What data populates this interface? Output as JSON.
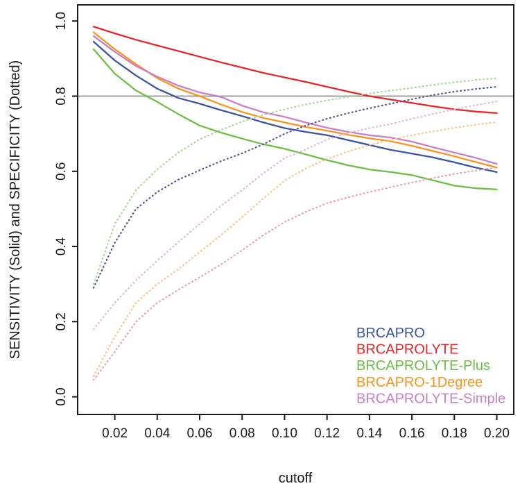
{
  "chart_data": {
    "type": "line",
    "title": "",
    "xlabel": "cutoff",
    "ylabel": "SENSITIVITY (Solid) and SPECIFICITY (Dotted)",
    "xlim": [
      0.0025,
      0.208
    ],
    "ylim": [
      -0.047,
      1.043
    ],
    "x_ticks": [
      0.02,
      0.04,
      0.06,
      0.08,
      0.1,
      0.12,
      0.14,
      0.16,
      0.18,
      0.2
    ],
    "x_tick_labels": [
      "0.02",
      "0.04",
      "0.06",
      "0.08",
      "0.10",
      "0.12",
      "0.14",
      "0.16",
      "0.18",
      "0.20"
    ],
    "y_ticks": [
      0.0,
      0.2,
      0.4,
      0.6,
      0.8,
      1.0
    ],
    "y_tick_labels": [
      "0.0",
      "0.2",
      "0.4",
      "0.6",
      "0.8",
      "1.0"
    ],
    "grid": false,
    "reference_line": {
      "y": 0.8,
      "color": "#b0b0b0"
    },
    "x": [
      0.01,
      0.02,
      0.03,
      0.04,
      0.05,
      0.06,
      0.07,
      0.08,
      0.09,
      0.1,
      0.11,
      0.12,
      0.13,
      0.14,
      0.15,
      0.16,
      0.17,
      0.18,
      0.19,
      0.2
    ],
    "series": [
      {
        "name": "BRCAPRO sensitivity",
        "model": "BRCAPRO",
        "style": "solid",
        "color": "#3a53a4",
        "values": [
          0.945,
          0.895,
          0.855,
          0.82,
          0.795,
          0.78,
          0.763,
          0.747,
          0.73,
          0.715,
          0.705,
          0.696,
          0.683,
          0.67,
          0.657,
          0.647,
          0.637,
          0.624,
          0.61,
          0.598
        ]
      },
      {
        "name": "BRCAPROLYTE sensitivity",
        "model": "BRCAPROLYTE",
        "style": "solid",
        "color": "#e8242b",
        "values": [
          0.985,
          0.967,
          0.95,
          0.935,
          0.92,
          0.905,
          0.89,
          0.876,
          0.862,
          0.85,
          0.838,
          0.825,
          0.812,
          0.8,
          0.791,
          0.782,
          0.773,
          0.765,
          0.759,
          0.755
        ]
      },
      {
        "name": "BRCAPROLYTE-Plus sensitivity",
        "model": "BRCAPROLYTE-Plus",
        "style": "solid",
        "color": "#6cbe45",
        "values": [
          0.925,
          0.86,
          0.815,
          0.785,
          0.752,
          0.722,
          0.703,
          0.687,
          0.672,
          0.66,
          0.645,
          0.63,
          0.616,
          0.605,
          0.598,
          0.59,
          0.576,
          0.562,
          0.555,
          0.552
        ]
      },
      {
        "name": "BRCAPRO-1Degree sensitivity",
        "model": "BRCAPRO-1Degree",
        "style": "solid",
        "color": "#f7941e",
        "values": [
          0.97,
          0.925,
          0.885,
          0.848,
          0.82,
          0.8,
          0.778,
          0.758,
          0.742,
          0.73,
          0.718,
          0.708,
          0.697,
          0.688,
          0.68,
          0.668,
          0.654,
          0.64,
          0.625,
          0.61
        ]
      },
      {
        "name": "BRCAPROLYTE-Simple sensitivity",
        "model": "BRCAPROLYTE-Simple",
        "style": "solid",
        "color": "#c87fc3",
        "values": [
          0.96,
          0.918,
          0.88,
          0.852,
          0.828,
          0.81,
          0.798,
          0.775,
          0.757,
          0.745,
          0.73,
          0.716,
          0.705,
          0.696,
          0.69,
          0.679,
          0.664,
          0.65,
          0.636,
          0.62
        ]
      },
      {
        "name": "BRCAPRO specificity",
        "model": "BRCAPRO",
        "style": "dotted",
        "color": "#4d568a",
        "values": [
          0.29,
          0.41,
          0.5,
          0.545,
          0.578,
          0.603,
          0.627,
          0.648,
          0.672,
          0.7,
          0.722,
          0.74,
          0.755,
          0.768,
          0.78,
          0.792,
          0.803,
          0.812,
          0.819,
          0.825
        ]
      },
      {
        "name": "BRCAPROLYTE specificity",
        "model": "BRCAPROLYTE",
        "style": "dotted",
        "color": "#f09ca4",
        "values": [
          0.045,
          0.12,
          0.2,
          0.25,
          0.285,
          0.318,
          0.352,
          0.39,
          0.43,
          0.465,
          0.492,
          0.515,
          0.531,
          0.545,
          0.558,
          0.57,
          0.582,
          0.593,
          0.602,
          0.61
        ]
      },
      {
        "name": "BRCAPROLYTE-Plus specificity",
        "model": "BRCAPROLYTE-Plus",
        "style": "dotted",
        "color": "#a6d795",
        "values": [
          0.3,
          0.46,
          0.55,
          0.605,
          0.65,
          0.685,
          0.71,
          0.732,
          0.75,
          0.765,
          0.778,
          0.789,
          0.798,
          0.807,
          0.815,
          0.822,
          0.83,
          0.837,
          0.843,
          0.848
        ]
      },
      {
        "name": "BRCAPRO-1Degree specificity",
        "model": "BRCAPRO-1Degree",
        "style": "dotted",
        "color": "#f9c489",
        "values": [
          0.055,
          0.16,
          0.25,
          0.3,
          0.34,
          0.385,
          0.43,
          0.478,
          0.528,
          0.575,
          0.608,
          0.633,
          0.653,
          0.67,
          0.684,
          0.696,
          0.706,
          0.716,
          0.724,
          0.731
        ]
      },
      {
        "name": "BRCAPROLYTE-Simple specificity",
        "model": "BRCAPROLYTE-Simple",
        "style": "dotted",
        "color": "#e0b7dc",
        "values": [
          0.18,
          0.25,
          0.31,
          0.362,
          0.412,
          0.46,
          0.508,
          0.55,
          0.595,
          0.635,
          0.658,
          0.685,
          0.702,
          0.715,
          0.726,
          0.74,
          0.753,
          0.765,
          0.776,
          0.786
        ]
      }
    ],
    "legend": {
      "position": "bottom-right",
      "entries": [
        {
          "label": "BRCAPRO",
          "color": "#3a53a4"
        },
        {
          "label": "BRCAPROLYTE",
          "color": "#e8242b"
        },
        {
          "label": "BRCAPROLYTE-Plus",
          "color": "#6cbe45"
        },
        {
          "label": "BRCAPRO-1Degree",
          "color": "#f7941e"
        },
        {
          "label": "BRCAPROLYTE-Simple",
          "color": "#c87fc3"
        }
      ]
    }
  }
}
